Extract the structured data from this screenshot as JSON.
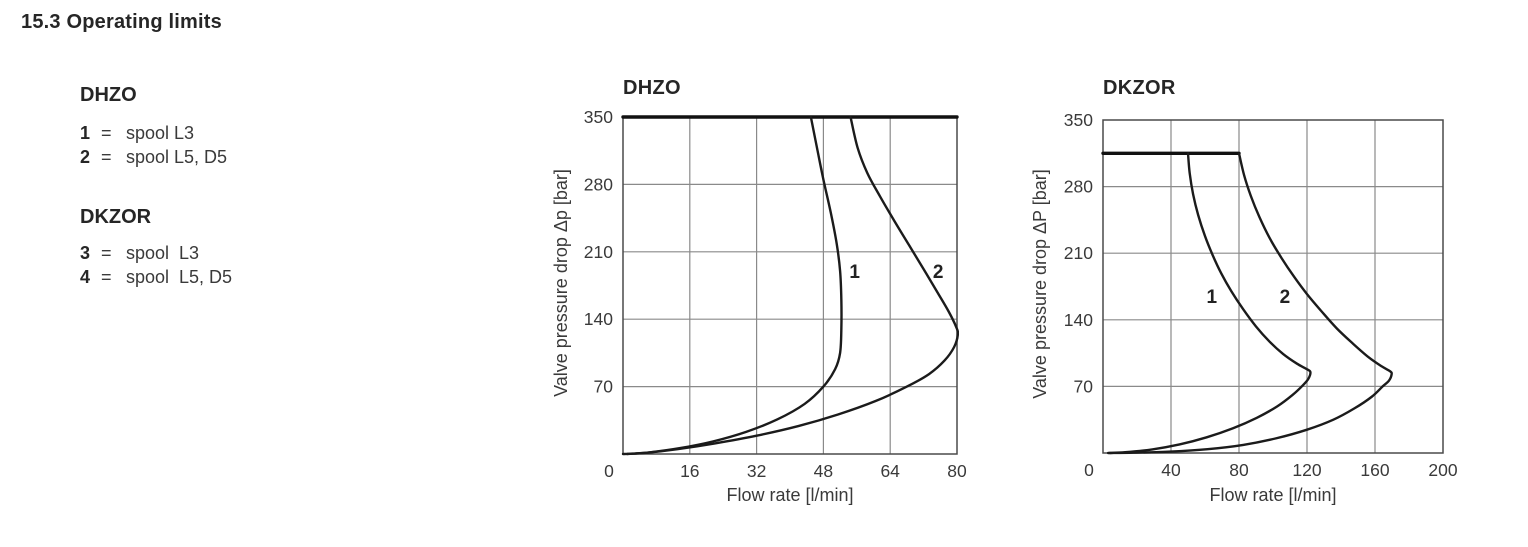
{
  "page": {
    "title": "15.3 Operating limits"
  },
  "colors": {
    "text": "#3a3a3a",
    "heading": "#262626",
    "grid": "#8a8a8a",
    "border": "#4a4a4a",
    "curve": "#1b1b1b",
    "cap": "#111111"
  },
  "legend": {
    "groups": [
      {
        "heading": "DHZO",
        "items": [
          {
            "num": "1",
            "eq": "=",
            "label": "spool L3"
          },
          {
            "num": "2",
            "eq": "=",
            "label": "spool L5, D5"
          }
        ]
      },
      {
        "heading": "DKZOR",
        "items": [
          {
            "num": "3",
            "eq": "=",
            "label": "spool  L3"
          },
          {
            "num": "4",
            "eq": "=",
            "label": "spool  L5, D5"
          }
        ]
      }
    ]
  },
  "chart_data": [
    {
      "type": "line",
      "title": "DHZO",
      "xlabel": "Flow rate [l/min]",
      "ylabel": "Valve pressure drop Δp [bar]",
      "xlim": [
        0,
        80
      ],
      "ylim": [
        0,
        350
      ],
      "xticks": [
        0,
        16,
        32,
        48,
        64,
        80
      ],
      "yticks": [
        70,
        140,
        210,
        280,
        350
      ],
      "grid": true,
      "legend_position": "none",
      "series": [
        {
          "name": "maximum pressure limit 350 bar",
          "role": "cap",
          "points": [
            [
              0,
              350
            ],
            [
              80,
              350
            ]
          ]
        },
        {
          "name": "1 - spool L3",
          "label": "1",
          "label_at": [
            55.5,
            190
          ],
          "points": [
            [
              45,
              350
            ],
            [
              46.6,
              315
            ],
            [
              48,
              285
            ],
            [
              49.8,
              250
            ],
            [
              51.2,
              218
            ],
            [
              52,
              190
            ],
            [
              52.3,
              160
            ],
            [
              52.3,
              130
            ],
            [
              52,
              105
            ],
            [
              50.8,
              88
            ],
            [
              48,
              70
            ],
            [
              43.5,
              52
            ],
            [
              37,
              36
            ],
            [
              29.5,
              23
            ],
            [
              21.5,
              13
            ],
            [
              13.5,
              6
            ],
            [
              6.5,
              1.8
            ],
            [
              1.5,
              0.2
            ],
            [
              0,
              0
            ]
          ]
        },
        {
          "name": "2 - spool L5, D5",
          "label": "2",
          "label_at": [
            75.5,
            190
          ],
          "points": [
            [
              54.5,
              350
            ],
            [
              56.2,
              318
            ],
            [
              58.5,
              292
            ],
            [
              61.5,
              268
            ],
            [
              65,
              242
            ],
            [
              68.5,
              217
            ],
            [
              72,
              192
            ],
            [
              75.3,
              168
            ],
            [
              78,
              148
            ],
            [
              79.8,
              132
            ],
            [
              80.2,
              124
            ],
            [
              79.3,
              111
            ],
            [
              77,
              97
            ],
            [
              73.3,
              83
            ],
            [
              68,
              70
            ],
            [
              60.5,
              55
            ],
            [
              51.5,
              41
            ],
            [
              42,
              29
            ],
            [
              32,
              19
            ],
            [
              22,
              11
            ],
            [
              13,
              5
            ],
            [
              5.5,
              1.2
            ],
            [
              1,
              0
            ]
          ]
        }
      ]
    },
    {
      "type": "line",
      "title": "DKZOR",
      "xlabel": "Flow rate [l/min]",
      "ylabel": "Valve pressure drop ΔP [bar]",
      "xlim": [
        0,
        200
      ],
      "ylim": [
        0,
        350
      ],
      "xticks": [
        0,
        40,
        80,
        120,
        160,
        200
      ],
      "yticks": [
        70,
        140,
        210,
        280,
        350
      ],
      "grid": true,
      "legend_position": "none",
      "series": [
        {
          "name": "maximum pressure limit 315 bar",
          "role": "cap",
          "points": [
            [
              0,
              315
            ],
            [
              80,
              315
            ]
          ]
        },
        {
          "name": "1 (3) - spool L3",
          "label": "1",
          "label_at": [
            64,
            165
          ],
          "points": [
            [
              50,
              315
            ],
            [
              51,
              294
            ],
            [
              53,
              272
            ],
            [
              56,
              250
            ],
            [
              60,
              228
            ],
            [
              64.5,
              208
            ],
            [
              69.5,
              189
            ],
            [
              75.5,
              170
            ],
            [
              82.5,
              151
            ],
            [
              90,
              133
            ],
            [
              98,
              117
            ],
            [
              106,
              104
            ],
            [
              114,
              94
            ],
            [
              120,
              88
            ],
            [
              122,
              85
            ],
            [
              120.8,
              78
            ],
            [
              117.5,
              71
            ],
            [
              111.5,
              61
            ],
            [
              102.5,
              49
            ],
            [
              90.5,
              37
            ],
            [
              76.5,
              26
            ],
            [
              61,
              16.5
            ],
            [
              45,
              9
            ],
            [
              29,
              3.8
            ],
            [
              13,
              0.8
            ],
            [
              3,
              0
            ]
          ]
        },
        {
          "name": "2 (4) - spool L5, D5",
          "label": "2",
          "label_at": [
            107,
            165
          ],
          "points": [
            [
              80,
              315
            ],
            [
              83,
              292
            ],
            [
              87,
              270
            ],
            [
              92,
              248
            ],
            [
              98,
              226
            ],
            [
              105,
              205
            ],
            [
              112.5,
              185
            ],
            [
              120,
              167
            ],
            [
              128.5,
              149
            ],
            [
              137.5,
              131
            ],
            [
              147,
              115
            ],
            [
              156,
              101
            ],
            [
              164,
              91
            ],
            [
              168.8,
              86
            ],
            [
              169.8,
              83
            ],
            [
              168.2,
              76
            ],
            [
              164.5,
              70
            ],
            [
              158,
              59
            ],
            [
              148,
              47
            ],
            [
              135.5,
              35
            ],
            [
              120,
              24.5
            ],
            [
              102,
              15.5
            ],
            [
              82.5,
              8.5
            ],
            [
              61.5,
              4
            ],
            [
              40,
              1.5
            ],
            [
              18,
              0.3
            ],
            [
              4,
              0
            ]
          ]
        }
      ]
    }
  ]
}
